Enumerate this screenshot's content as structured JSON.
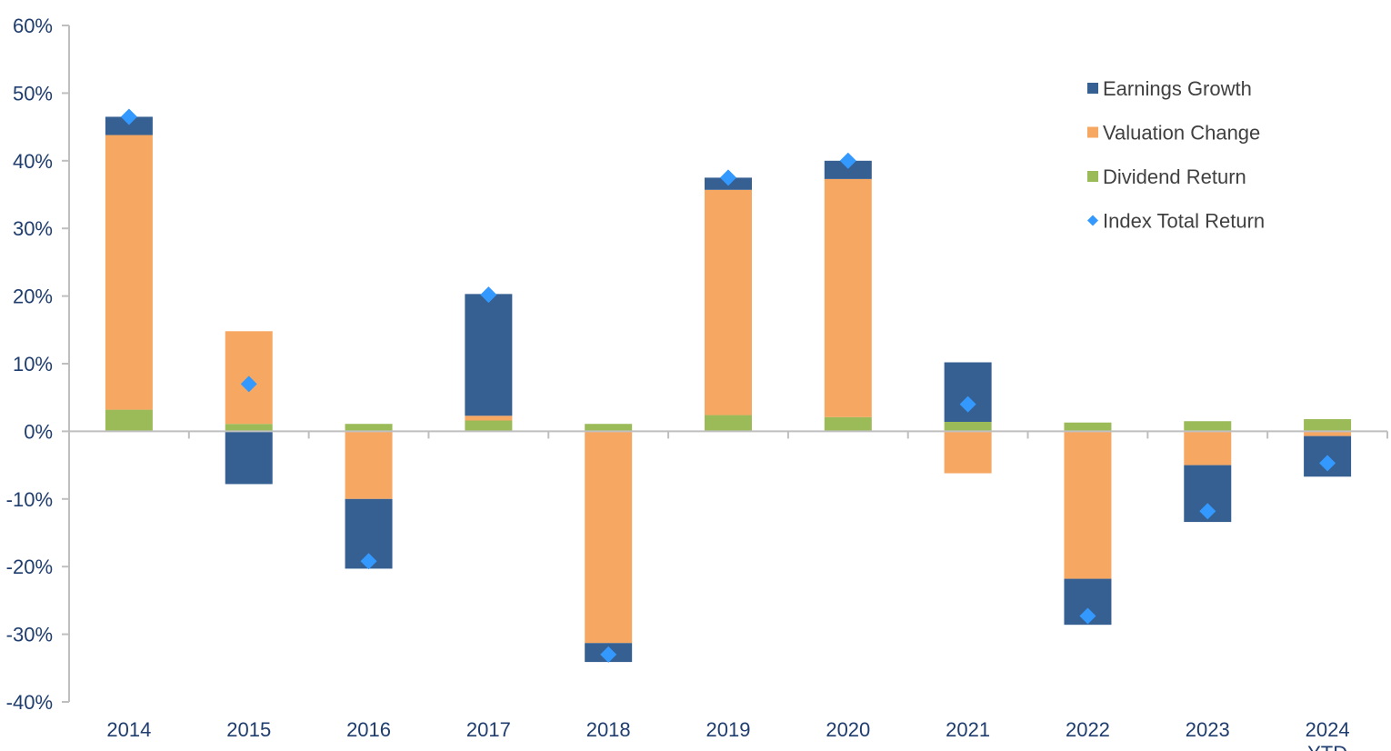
{
  "chart_data": {
    "type": "bar",
    "stacked": true,
    "categories": [
      "2014",
      "2015",
      "2016",
      "2017",
      "2018",
      "2019",
      "2020",
      "2021",
      "2022",
      "2023",
      "2024"
    ],
    "category_sublabels": [
      "",
      "",
      "",
      "",
      "",
      "",
      "",
      "",
      "",
      "",
      "YTD"
    ],
    "series": [
      {
        "name": "Dividend Return",
        "kind": "bar",
        "color": "#9bbb59",
        "values": [
          3.2,
          1.1,
          1.1,
          1.6,
          1.1,
          2.4,
          2.1,
          1.4,
          1.3,
          1.5,
          1.8
        ]
      },
      {
        "name": "Valuation Change",
        "kind": "bar",
        "color": "#f6a862",
        "values": [
          40.6,
          13.7,
          -10.0,
          0.7,
          -31.3,
          33.3,
          35.2,
          -6.2,
          -21.8,
          -5.0,
          -0.7
        ]
      },
      {
        "name": "Earnings Growth",
        "kind": "bar",
        "color": "#366092",
        "values": [
          2.7,
          -7.8,
          -10.3,
          18.0,
          -2.8,
          1.8,
          2.7,
          8.8,
          -6.8,
          -8.4,
          -6.0
        ]
      },
      {
        "name": "Index Total Return",
        "kind": "marker",
        "color": "#3399ff",
        "values": [
          46.5,
          7.0,
          -19.2,
          20.2,
          -33.0,
          37.5,
          40.0,
          4.0,
          -27.3,
          -11.8,
          -4.7
        ]
      }
    ],
    "legend_order": [
      "Earnings Growth",
      "Valuation Change",
      "Dividend Return",
      "Index Total Return"
    ],
    "legend_position": "top-right",
    "ylim": [
      -40,
      60
    ],
    "yticks": [
      -40,
      -30,
      -20,
      -10,
      0,
      10,
      20,
      30,
      40,
      50,
      60
    ],
    "ytick_labels": [
      "-40%",
      "-30%",
      "-20%",
      "-10%",
      "0%",
      "10%",
      "20%",
      "30%",
      "40%",
      "50%",
      "60%"
    ],
    "title": "",
    "xlabel": "",
    "ylabel": "",
    "grid": false
  }
}
